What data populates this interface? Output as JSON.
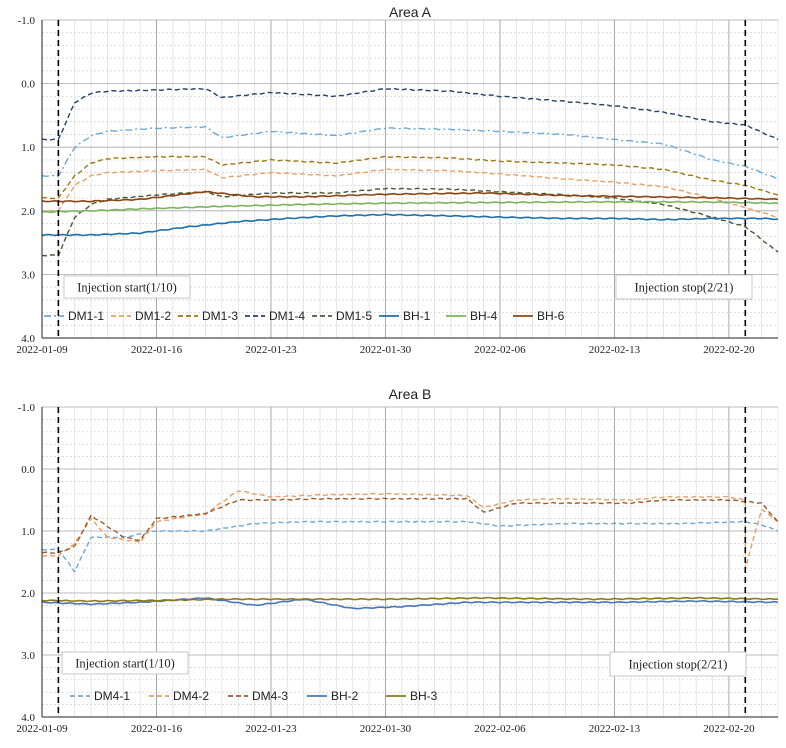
{
  "chart_data": [
    {
      "type": "line",
      "title": "Area A",
      "xlabel": "",
      "ylabel": "",
      "x_type": "date",
      "xlim": [
        "2022-01-09",
        "2022-02-23"
      ],
      "x_ticks": [
        "2022-01-09",
        "2022-01-16",
        "2022-01-23",
        "2022-01-30",
        "2022-02-06",
        "2022-02-13",
        "2022-02-20"
      ],
      "ylim": [
        -1.0,
        4.0
      ],
      "y_inverted": true,
      "y_ticks": [
        "-1.0",
        "0.0",
        "1.0",
        "2.0",
        "3.0",
        "4.0"
      ],
      "grid": true,
      "legend_position": "bottom",
      "events": [
        {
          "label": "Injection start(1/10)",
          "date": "2022-01-10",
          "line_style": "dashed"
        },
        {
          "label": "Injection stop(2/21)",
          "date": "2022-02-21",
          "line_style": "dashed"
        }
      ],
      "series": [
        {
          "name": "DM1-1",
          "color": "#6fa8d6",
          "style": "dashdot",
          "x": [
            "2022-01-09",
            "2022-01-10",
            "2022-01-11",
            "2022-01-12",
            "2022-01-13",
            "2022-01-16",
            "2022-01-19",
            "2022-01-20",
            "2022-01-23",
            "2022-01-27",
            "2022-01-30",
            "2022-02-03",
            "2022-02-06",
            "2022-02-10",
            "2022-02-13",
            "2022-02-16",
            "2022-02-19",
            "2022-02-21",
            "2022-02-23"
          ],
          "y": [
            1.45,
            1.45,
            1.0,
            0.82,
            0.75,
            0.7,
            0.68,
            0.85,
            0.75,
            0.82,
            0.7,
            0.72,
            0.75,
            0.8,
            0.88,
            0.95,
            1.2,
            1.3,
            1.5
          ]
        },
        {
          "name": "DM1-2",
          "color": "#e8a066",
          "style": "dashed",
          "x": [
            "2022-01-09",
            "2022-01-10",
            "2022-01-11",
            "2022-01-12",
            "2022-01-13",
            "2022-01-16",
            "2022-01-19",
            "2022-01-20",
            "2022-01-23",
            "2022-01-27",
            "2022-01-30",
            "2022-02-03",
            "2022-02-06",
            "2022-02-10",
            "2022-02-13",
            "2022-02-16",
            "2022-02-19",
            "2022-02-21",
            "2022-02-23"
          ],
          "y": [
            2.0,
            2.0,
            1.6,
            1.45,
            1.4,
            1.37,
            1.35,
            1.48,
            1.4,
            1.45,
            1.35,
            1.37,
            1.42,
            1.5,
            1.55,
            1.62,
            1.8,
            1.95,
            2.1
          ]
        },
        {
          "name": "DM1-3",
          "color": "#a0760f",
          "style": "dashed",
          "x": [
            "2022-01-09",
            "2022-01-10",
            "2022-01-11",
            "2022-01-12",
            "2022-01-13",
            "2022-01-16",
            "2022-01-19",
            "2022-01-20",
            "2022-01-23",
            "2022-01-27",
            "2022-01-30",
            "2022-02-03",
            "2022-02-06",
            "2022-02-10",
            "2022-02-13",
            "2022-02-16",
            "2022-02-19",
            "2022-02-21",
            "2022-02-23"
          ],
          "y": [
            1.8,
            1.8,
            1.45,
            1.25,
            1.18,
            1.15,
            1.15,
            1.28,
            1.2,
            1.25,
            1.15,
            1.17,
            1.22,
            1.25,
            1.28,
            1.35,
            1.52,
            1.6,
            1.75
          ]
        },
        {
          "name": "DM1-4",
          "color": "#24406b",
          "style": "dashed",
          "x": [
            "2022-01-09",
            "2022-01-10",
            "2022-01-11",
            "2022-01-12",
            "2022-01-13",
            "2022-01-16",
            "2022-01-19",
            "2022-01-20",
            "2022-01-23",
            "2022-01-27",
            "2022-01-30",
            "2022-02-03",
            "2022-02-06",
            "2022-02-10",
            "2022-02-13",
            "2022-02-16",
            "2022-02-19",
            "2022-02-21",
            "2022-02-23"
          ],
          "y": [
            0.88,
            0.88,
            0.3,
            0.15,
            0.12,
            0.1,
            0.08,
            0.22,
            0.14,
            0.2,
            0.08,
            0.12,
            0.2,
            0.28,
            0.35,
            0.45,
            0.6,
            0.65,
            0.88
          ]
        },
        {
          "name": "DM1-5",
          "color": "#4a5a33",
          "style": "dashed",
          "x": [
            "2022-01-09",
            "2022-01-10",
            "2022-01-11",
            "2022-01-12",
            "2022-01-13",
            "2022-01-16",
            "2022-01-19",
            "2022-01-20",
            "2022-01-23",
            "2022-01-27",
            "2022-01-30",
            "2022-02-03",
            "2022-02-06",
            "2022-02-10",
            "2022-02-13",
            "2022-02-16",
            "2022-02-19",
            "2022-02-21",
            "2022-02-23"
          ],
          "y": [
            2.7,
            2.7,
            2.1,
            1.9,
            1.82,
            1.75,
            1.7,
            1.78,
            1.72,
            1.72,
            1.65,
            1.66,
            1.7,
            1.75,
            1.8,
            1.9,
            2.1,
            2.25,
            2.65
          ]
        },
        {
          "name": "BH-1",
          "color": "#1f6fa8",
          "style": "solid",
          "x": [
            "2022-01-09",
            "2022-01-12",
            "2022-01-15",
            "2022-01-18",
            "2022-01-21",
            "2022-01-24",
            "2022-01-27",
            "2022-01-30",
            "2022-02-03",
            "2022-02-06",
            "2022-02-10",
            "2022-02-13",
            "2022-02-16",
            "2022-02-19",
            "2022-02-22",
            "2022-02-23"
          ],
          "y": [
            2.38,
            2.38,
            2.35,
            2.25,
            2.17,
            2.12,
            2.08,
            2.06,
            2.08,
            2.1,
            2.12,
            2.12,
            2.14,
            2.12,
            2.12,
            2.13
          ]
        },
        {
          "name": "BH-4",
          "color": "#7ab55c",
          "style": "solid",
          "x": [
            "2022-01-09",
            "2022-01-12",
            "2022-01-15",
            "2022-01-20",
            "2022-01-25",
            "2022-01-30",
            "2022-02-05",
            "2022-02-12",
            "2022-02-18",
            "2022-02-23"
          ],
          "y": [
            2.02,
            2.0,
            1.97,
            1.93,
            1.9,
            1.88,
            1.87,
            1.86,
            1.86,
            1.88
          ]
        },
        {
          "name": "BH-6",
          "color": "#8b4513",
          "style": "solid",
          "x": [
            "2022-01-09",
            "2022-01-12",
            "2022-01-15",
            "2022-01-19",
            "2022-01-22",
            "2022-01-25",
            "2022-01-30",
            "2022-02-05",
            "2022-02-10",
            "2022-02-15",
            "2022-02-20",
            "2022-02-23"
          ],
          "y": [
            1.85,
            1.85,
            1.82,
            1.7,
            1.78,
            1.78,
            1.74,
            1.72,
            1.76,
            1.78,
            1.8,
            1.82
          ]
        }
      ]
    },
    {
      "type": "line",
      "title": "Area B",
      "xlabel": "",
      "ylabel": "",
      "x_type": "date",
      "xlim": [
        "2022-01-09",
        "2022-02-23"
      ],
      "x_ticks": [
        "2022-01-09",
        "2022-01-16",
        "2022-01-23",
        "2022-01-30",
        "2022-02-06",
        "2022-02-13",
        "2022-02-20"
      ],
      "ylim": [
        -1.0,
        4.0
      ],
      "y_inverted": true,
      "y_ticks": [
        "-1.0",
        "0.0",
        "1.0",
        "2.0",
        "3.0",
        "4.0"
      ],
      "grid": true,
      "legend_position": "bottom",
      "events": [
        {
          "label": "Injection start(1/10)",
          "date": "2022-01-10",
          "line_style": "dashed"
        },
        {
          "label": "Injection stop(2/21)",
          "date": "2022-02-21",
          "line_style": "dashed"
        }
      ],
      "series": [
        {
          "name": "DM4-1",
          "color": "#6fa8d6",
          "style": "dashed",
          "x": [
            "2022-01-09",
            "2022-01-10",
            "2022-01-11",
            "2022-01-12",
            "2022-01-14",
            "2022-01-16",
            "2022-01-19",
            "2022-01-22",
            "2022-01-25",
            "2022-01-30",
            "2022-02-04",
            "2022-02-06",
            "2022-02-10",
            "2022-02-13",
            "2022-02-17",
            "2022-02-21",
            "2022-02-22",
            "2022-02-23"
          ],
          "y": [
            1.3,
            1.3,
            1.65,
            1.1,
            1.1,
            1.0,
            1.0,
            0.88,
            0.85,
            0.85,
            0.85,
            0.92,
            0.88,
            0.88,
            0.88,
            0.85,
            0.9,
            1.0
          ]
        },
        {
          "name": "DM4-2",
          "color": "#e8a066",
          "style": "dashed",
          "x": [
            "2022-01-09",
            "2022-01-10",
            "2022-01-11",
            "2022-01-12",
            "2022-01-13",
            "2022-01-15",
            "2022-01-16",
            "2022-01-19",
            "2022-01-21",
            "2022-01-23",
            "2022-01-26",
            "2022-01-30",
            "2022-02-04",
            "2022-02-05",
            "2022-02-07",
            "2022-02-10",
            "2022-02-14",
            "2022-02-16",
            "2022-02-20",
            "2022-02-21",
            "2022-02-21",
            "2022-02-22",
            "2022-02-23"
          ],
          "y": [
            1.4,
            1.4,
            1.2,
            0.8,
            1.1,
            1.18,
            0.85,
            0.72,
            0.35,
            0.45,
            0.42,
            0.4,
            0.43,
            0.62,
            0.5,
            0.48,
            0.5,
            0.45,
            0.45,
            0.5,
            1.6,
            0.65,
            0.85
          ]
        },
        {
          "name": "DM4-3",
          "color": "#a05a2c",
          "style": "dashed",
          "x": [
            "2022-01-09",
            "2022-01-10",
            "2022-01-11",
            "2022-01-12",
            "2022-01-14",
            "2022-01-15",
            "2022-01-16",
            "2022-01-19",
            "2022-01-21",
            "2022-01-23",
            "2022-01-26",
            "2022-01-30",
            "2022-02-04",
            "2022-02-05",
            "2022-02-07",
            "2022-02-10",
            "2022-02-14",
            "2022-02-16",
            "2022-02-20",
            "2022-02-22",
            "2022-02-23"
          ],
          "y": [
            1.35,
            1.35,
            1.25,
            0.75,
            1.1,
            1.15,
            0.8,
            0.72,
            0.5,
            0.5,
            0.48,
            0.48,
            0.48,
            0.7,
            0.55,
            0.55,
            0.55,
            0.5,
            0.5,
            0.55,
            0.85
          ]
        },
        {
          "name": "BH-2",
          "color": "#4a76b8",
          "style": "solid",
          "x": [
            "2022-01-09",
            "2022-01-12",
            "2022-01-15",
            "2022-01-19",
            "2022-01-22",
            "2022-01-25",
            "2022-01-28",
            "2022-01-31",
            "2022-02-04",
            "2022-02-07",
            "2022-02-13",
            "2022-02-18",
            "2022-02-23"
          ],
          "y": [
            2.15,
            2.18,
            2.15,
            2.08,
            2.2,
            2.1,
            2.25,
            2.22,
            2.15,
            2.15,
            2.15,
            2.13,
            2.15
          ]
        },
        {
          "name": "BH-3",
          "color": "#8c7a1a",
          "style": "solid",
          "x": [
            "2022-01-09",
            "2022-01-12",
            "2022-01-16",
            "2022-01-20",
            "2022-01-25",
            "2022-01-30",
            "2022-02-05",
            "2022-02-12",
            "2022-02-18",
            "2022-02-23"
          ],
          "y": [
            2.12,
            2.13,
            2.12,
            2.1,
            2.1,
            2.1,
            2.08,
            2.1,
            2.08,
            2.1
          ]
        }
      ]
    }
  ]
}
